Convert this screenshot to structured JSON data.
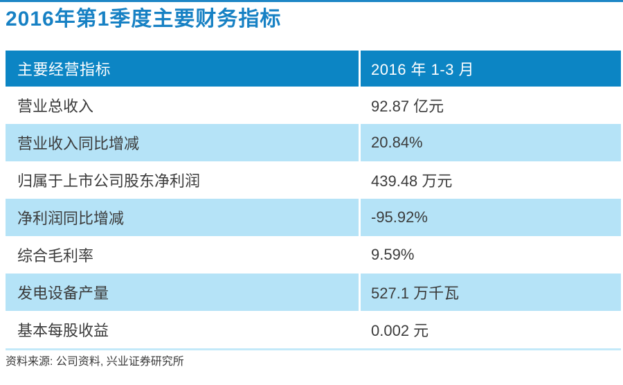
{
  "page": {
    "title": "2016年第1季度主要财务指标",
    "source_note": "资料来源: 公司资料, 兴业证券研究所"
  },
  "colors": {
    "title_blue": "#1781c4",
    "top_line_blue": "#1e86c6",
    "header_bg": "#0c85c4",
    "header_text": "#ffffff",
    "alt_row_bg": "#b5e3f7",
    "footer_line": "#c3e9f9",
    "body_text": "#3b3b3b"
  },
  "table": {
    "header": {
      "col1": "主要经营指标",
      "col2": "2016 年 1-3 月"
    },
    "rows": [
      {
        "label": "营业总收入",
        "value": "92.87 亿元"
      },
      {
        "label": "营业收入同比增减",
        "value": "20.84%"
      },
      {
        "label": "归属于上市公司股东净利润",
        "value": "439.48 万元"
      },
      {
        "label": "净利润同比增减",
        "value": "-95.92%"
      },
      {
        "label": "综合毛利率",
        "value": "9.59%"
      },
      {
        "label": "发电设备产量",
        "value": "527.1 万千瓦"
      },
      {
        "label": "基本每股收益",
        "value": "0.002 元"
      }
    ]
  },
  "chart_data": {
    "type": "table",
    "title": "2016年第1季度主要财务指标",
    "columns": [
      "主要经营指标",
      "2016 年 1-3 月"
    ],
    "rows": [
      [
        "营业总收入",
        "92.87 亿元"
      ],
      [
        "营业收入同比增减",
        "20.84%"
      ],
      [
        "归属于上市公司股东净利润",
        "439.48 万元"
      ],
      [
        "净利润同比增减",
        "-95.92%"
      ],
      [
        "综合毛利率",
        "9.59%"
      ],
      [
        "发电设备产量",
        "527.1 万千瓦"
      ],
      [
        "基本每股收益",
        "0.002 元"
      ]
    ],
    "source": "资料来源: 公司资料, 兴业证券研究所",
    "layout_hints": {
      "header_style": "solid blue bar with white text",
      "row_striping": "white / light blue alternating starting white",
      "column_divider": "white 3px vertical rule at x≈521"
    }
  }
}
